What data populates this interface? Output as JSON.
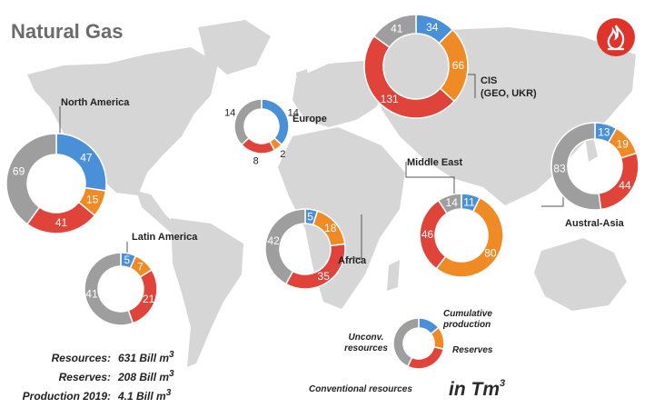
{
  "title": "Natural Gas",
  "logo_icon": "flame-icon",
  "colors": {
    "cumulative_production": "#4a90d9",
    "reserves": "#f08a24",
    "conventional_resources": "#e0433a",
    "unconventional_resources": "#9e9e9e",
    "map": "#d6d6d6",
    "logo": "#e0332a"
  },
  "chart_data": {
    "type": "donut",
    "segment_order": [
      "cumulative_production",
      "reserves",
      "conventional_resources",
      "unconventional_resources"
    ],
    "regions": [
      {
        "id": "north-america",
        "name": "North America",
        "values": [
          47,
          15,
          41,
          69
        ]
      },
      {
        "id": "europe",
        "name": "Europe",
        "values": [
          14,
          2,
          8,
          14
        ]
      },
      {
        "id": "cis",
        "name_lines": [
          "CIS",
          "(GEO, UKR)"
        ],
        "values": [
          34,
          66,
          131,
          41
        ]
      },
      {
        "id": "middle-east",
        "name": "Middle East",
        "values": [
          11,
          80,
          46,
          14
        ]
      },
      {
        "id": "austral-asia",
        "name": "Austral-Asia",
        "values": [
          13,
          19,
          44,
          83
        ]
      },
      {
        "id": "africa",
        "name": "Africa",
        "values": [
          5,
          18,
          35,
          42
        ]
      },
      {
        "id": "latin-america",
        "name": "Latin America",
        "values": [
          5,
          7,
          21,
          41
        ]
      }
    ],
    "legend": {
      "cumulative": "Cumulative production",
      "reserves": "Reserves",
      "conventional": "Conventional resources",
      "unconventional": "Unconv. resources"
    },
    "unit": "in Tm",
    "unit_sup": "3"
  },
  "stats": [
    {
      "label": "Resources:",
      "value": "631 Bill m",
      "sup": "3"
    },
    {
      "label": "Reserves:",
      "value": "208 Bill m",
      "sup": "3"
    },
    {
      "label": "Production 2019:",
      "value": "4.1 Bill m",
      "sup": "3"
    }
  ]
}
